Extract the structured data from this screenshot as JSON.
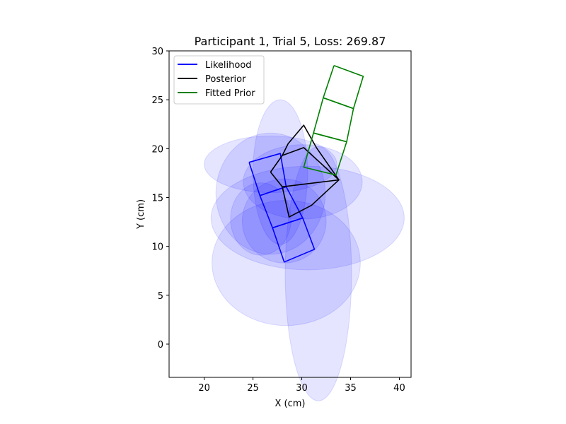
{
  "chart_data": {
    "type": "line",
    "title": "Participant 1, Trial 5, Loss: 269.87",
    "xlabel": "X (cm)",
    "ylabel": "Y (cm)",
    "xlim": [
      16.4,
      41.2
    ],
    "ylim": [
      -3.4,
      30
    ],
    "xticks": [
      20,
      25,
      30,
      35,
      40
    ],
    "yticks": [
      0,
      5,
      10,
      15,
      20,
      25,
      30
    ],
    "legend_position": "top-left",
    "colors": {
      "likelihood": "#0000ff",
      "posterior": "#000000",
      "prior": "#008000",
      "ellipse": "#0000ff"
    },
    "series": [
      {
        "name": "Likelihood",
        "color": "#0000ff",
        "segments": [
          [
            [
              24.6,
              18.6
            ],
            [
              27.8,
              19.5
            ],
            [
              28.4,
              16.1
            ],
            [
              25.7,
              15.2
            ],
            [
              24.6,
              18.6
            ]
          ],
          [
            [
              25.7,
              15.2
            ],
            [
              28.4,
              16.1
            ],
            [
              30.1,
              12.9
            ],
            [
              27.0,
              11.9
            ],
            [
              25.7,
              15.2
            ]
          ],
          [
            [
              27.0,
              11.9
            ],
            [
              30.1,
              12.9
            ],
            [
              31.3,
              9.7
            ],
            [
              28.2,
              8.4
            ],
            [
              27.0,
              11.9
            ]
          ]
        ]
      },
      {
        "name": "Posterior",
        "color": "#000000",
        "segments": [
          [
            [
              26.8,
              17.6
            ],
            [
              28.0,
              19.3
            ],
            [
              30.2,
              20.1
            ],
            [
              33.8,
              16.8
            ],
            [
              28.0,
              16.1
            ],
            [
              26.8,
              17.6
            ]
          ],
          [
            [
              28.0,
              19.3
            ],
            [
              28.6,
              20.5
            ],
            [
              30.2,
              22.4
            ],
            [
              31.5,
              20.1
            ],
            [
              33.8,
              16.8
            ],
            [
              31.0,
              14.2
            ],
            [
              28.7,
              13.0
            ],
            [
              28.0,
              16.1
            ]
          ]
        ]
      },
      {
        "name": "Fitted Prior",
        "color": "#008000",
        "segments": [
          [
            [
              33.3,
              28.5
            ],
            [
              36.3,
              27.4
            ],
            [
              35.3,
              24.1
            ],
            [
              32.2,
              25.2
            ],
            [
              33.3,
              28.5
            ]
          ],
          [
            [
              32.2,
              25.2
            ],
            [
              35.3,
              24.1
            ],
            [
              34.6,
              20.7
            ],
            [
              31.2,
              21.6
            ],
            [
              32.2,
              25.2
            ]
          ],
          [
            [
              31.2,
              21.6
            ],
            [
              34.6,
              20.7
            ],
            [
              33.5,
              17.3
            ],
            [
              30.2,
              18.1
            ],
            [
              31.2,
              21.6
            ]
          ]
        ]
      }
    ],
    "ellipses": [
      {
        "cx": 26.8,
        "cy": 18.4,
        "rx": 6.8,
        "ry": 2.9,
        "angle": 0
      },
      {
        "cx": 26.8,
        "cy": 15.4,
        "rx": 5.6,
        "ry": 6.2,
        "angle": 0
      },
      {
        "cx": 30.1,
        "cy": 16.6,
        "rx": 6.1,
        "ry": 3.8,
        "angle": 0
      },
      {
        "cx": 27.8,
        "cy": 17.6,
        "rx": 2.8,
        "ry": 7.4,
        "angle": 0
      },
      {
        "cx": 25.8,
        "cy": 12.8,
        "rx": 3.1,
        "ry": 3.7,
        "angle": 0
      },
      {
        "cx": 30.6,
        "cy": 12.9,
        "rx": 9.9,
        "ry": 5.3,
        "angle": 0
      },
      {
        "cx": 28.4,
        "cy": 8.3,
        "rx": 7.6,
        "ry": 6.4,
        "angle": 0
      },
      {
        "cx": 31.7,
        "cy": 7.2,
        "rx": 3.4,
        "ry": 13.0,
        "angle": 0
      },
      {
        "cx": 28.2,
        "cy": 12.6,
        "rx": 4.3,
        "ry": 4.3,
        "angle": 0
      }
    ]
  }
}
